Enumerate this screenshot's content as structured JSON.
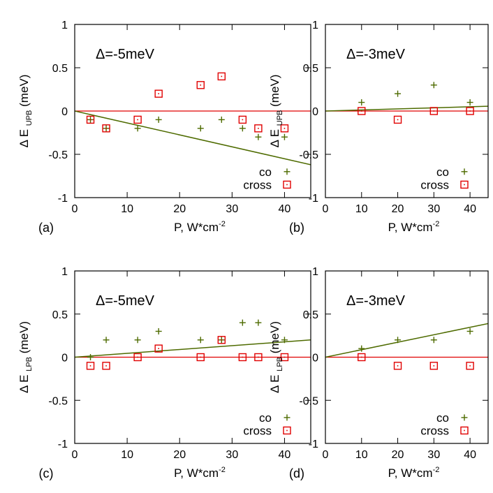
{
  "colors": {
    "co": "#4e6b00",
    "cross": "#e00000",
    "fit_co": "#4e6b00",
    "zero_line": "#e00000",
    "axes": "#000000"
  },
  "chart_data": [
    {
      "type": "scatter",
      "panel_label": "(a)",
      "inset_text": "Δ=-5meV",
      "xlabel": "P, W*cm",
      "xlabel_sup": "-2",
      "ylabel": "Δ E",
      "ylabel_sub": "UPB",
      "ylabel_unit": "(meV)",
      "xlim": [
        0,
        45
      ],
      "ylim": [
        -1,
        1
      ],
      "xticks": [
        0,
        10,
        20,
        30,
        40
      ],
      "yticks": [
        -1,
        -0.5,
        0,
        0.5,
        1
      ],
      "ytick_labels": [
        "-1",
        "-0.5",
        "0",
        "0.5",
        "1"
      ],
      "legend_position": "bottom-right",
      "series": [
        {
          "name": "co",
          "marker": "plus",
          "x": [
            3,
            6,
            12,
            16,
            24,
            28,
            32,
            35,
            40
          ],
          "y": [
            -0.1,
            -0.2,
            -0.2,
            -0.1,
            -0.2,
            -0.1,
            -0.2,
            -0.3,
            -0.3
          ]
        },
        {
          "name": "cross",
          "marker": "square",
          "x": [
            3,
            6,
            12,
            16,
            24,
            28,
            32,
            35,
            40
          ],
          "y": [
            -0.1,
            -0.2,
            -0.1,
            0.2,
            0.3,
            0.4,
            -0.1,
            -0.2,
            -0.2
          ]
        }
      ],
      "fit_line": {
        "x": [
          0,
          45
        ],
        "y": [
          0,
          -0.62
        ]
      },
      "zero_line": {
        "x": [
          0,
          45
        ],
        "y": [
          0,
          0
        ]
      }
    },
    {
      "type": "scatter",
      "panel_label": "(b)",
      "inset_text": "Δ=-3meV",
      "xlabel": "P, W*cm",
      "xlabel_sup": "-2",
      "ylabel": "Δ E",
      "ylabel_sub": "UPB",
      "ylabel_unit": "(meV)",
      "xlim": [
        0,
        45
      ],
      "ylim": [
        -1,
        1
      ],
      "xticks": [
        0,
        10,
        20,
        30,
        40
      ],
      "yticks": [
        -1,
        -0.5,
        0,
        0.5,
        1
      ],
      "ytick_labels": [
        "-1",
        "-0.5",
        "0",
        "0.5",
        "1"
      ],
      "legend_position": "bottom-right",
      "series": [
        {
          "name": "co",
          "marker": "plus",
          "x": [
            10,
            20,
            30,
            40
          ],
          "y": [
            0.1,
            0.2,
            0.3,
            0.1
          ]
        },
        {
          "name": "cross",
          "marker": "square",
          "x": [
            10,
            20,
            30,
            40
          ],
          "y": [
            0,
            -0.1,
            0,
            0
          ]
        }
      ],
      "fit_line": {
        "x": [
          0,
          45
        ],
        "y": [
          0,
          0.055
        ]
      },
      "zero_line": {
        "x": [
          0,
          45
        ],
        "y": [
          0,
          0
        ]
      }
    },
    {
      "type": "scatter",
      "panel_label": "(c)",
      "inset_text": "Δ=-5meV",
      "xlabel": "P, W*cm",
      "xlabel_sup": "-2",
      "ylabel": "Δ E",
      "ylabel_sub": "LPB",
      "ylabel_unit": "(meV)",
      "xlim": [
        0,
        45
      ],
      "ylim": [
        -1,
        1
      ],
      "xticks": [
        0,
        10,
        20,
        30,
        40
      ],
      "yticks": [
        -1,
        -0.5,
        0,
        0.5,
        1
      ],
      "ytick_labels": [
        "-1",
        "-0.5",
        "0",
        "0.5",
        "1"
      ],
      "legend_position": "bottom-right",
      "series": [
        {
          "name": "co",
          "marker": "plus",
          "x": [
            3,
            6,
            12,
            16,
            24,
            28,
            32,
            35,
            40
          ],
          "y": [
            0,
            0.2,
            0.2,
            0.3,
            0.2,
            0.2,
            0.4,
            0.4,
            0.2
          ]
        },
        {
          "name": "cross",
          "marker": "square",
          "x": [
            3,
            6,
            12,
            16,
            24,
            28,
            32,
            35,
            40
          ],
          "y": [
            -0.1,
            -0.1,
            0,
            0.1,
            0,
            0.2,
            0,
            0,
            0
          ]
        }
      ],
      "fit_line": {
        "x": [
          0,
          45
        ],
        "y": [
          0,
          0.2
        ]
      },
      "zero_line": {
        "x": [
          0,
          45
        ],
        "y": [
          0,
          0
        ]
      }
    },
    {
      "type": "scatter",
      "panel_label": "(d)",
      "inset_text": "Δ=-3meV",
      "xlabel": "P, W*cm",
      "xlabel_sup": "-2",
      "ylabel": "Δ E",
      "ylabel_sub": "LPB",
      "ylabel_unit": "(meV)",
      "xlim": [
        0,
        45
      ],
      "ylim": [
        -1,
        1
      ],
      "xticks": [
        0,
        10,
        20,
        30,
        40
      ],
      "yticks": [
        -1,
        -0.5,
        0,
        0.5,
        1
      ],
      "ytick_labels": [
        "-1",
        "-0.5",
        "0",
        "0.5",
        "1"
      ],
      "legend_position": "bottom-right",
      "series": [
        {
          "name": "co",
          "marker": "plus",
          "x": [
            10,
            20,
            30,
            40
          ],
          "y": [
            0.1,
            0.2,
            0.2,
            0.3
          ]
        },
        {
          "name": "cross",
          "marker": "square",
          "x": [
            10,
            20,
            30,
            40
          ],
          "y": [
            0,
            -0.1,
            -0.1,
            -0.1
          ]
        }
      ],
      "fit_line": {
        "x": [
          0,
          45
        ],
        "y": [
          0,
          0.39
        ]
      },
      "zero_line": {
        "x": [
          0,
          45
        ],
        "y": [
          0,
          0
        ]
      }
    }
  ]
}
